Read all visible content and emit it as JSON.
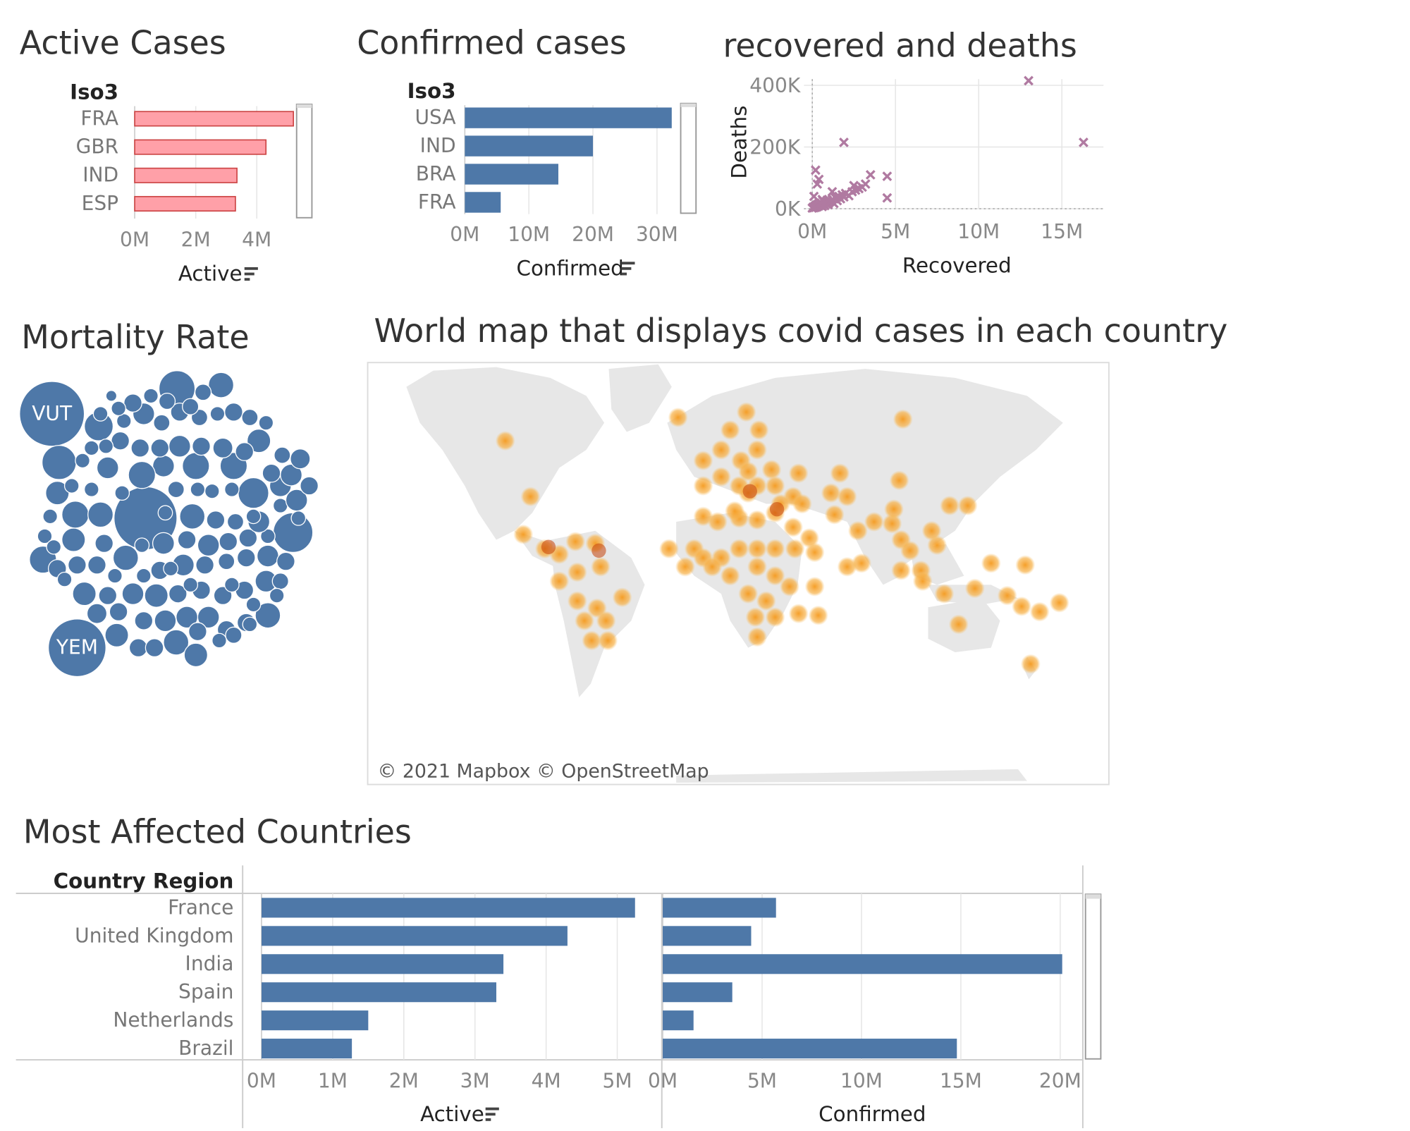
{
  "colors": {
    "pink": "#ffa0a8",
    "pink_stroke": "#c44",
    "blue": "#4e78a8",
    "scatter": "#b07aa1",
    "map_land": "#e7e7e7",
    "heat": "#f5a623"
  },
  "sort_icon": "sort-descending-icon",
  "panels": {
    "active_cases": {
      "title": "Active Cases",
      "chart_data": {
        "type": "bar",
        "orientation": "horizontal",
        "row_header": "Iso3",
        "categories": [
          "FRA",
          "GBR",
          "IND",
          "ESP"
        ],
        "values": [
          5.2,
          4.3,
          3.35,
          3.3
        ],
        "unit": "M",
        "xlabel": "Active",
        "xticks": [
          "0M",
          "2M",
          "4M"
        ],
        "xlim": [
          0,
          5.6
        ]
      }
    },
    "confirmed_cases": {
      "title": "Confirmed cases",
      "chart_data": {
        "type": "bar",
        "orientation": "horizontal",
        "row_header": "Iso3",
        "categories": [
          "USA",
          "IND",
          "BRA",
          "FRA"
        ],
        "values": [
          32.3,
          20.0,
          14.6,
          5.6
        ],
        "unit": "M",
        "xlabel": "Confirmed",
        "xticks": [
          "0M",
          "10M",
          "20M",
          "30M"
        ],
        "xlim": [
          0,
          33
        ]
      }
    },
    "recovered_deaths": {
      "title": "recovered and deaths",
      "chart_data": {
        "type": "scatter",
        "marker": "x",
        "xlabel": "Recovered",
        "ylabel": "Deaths",
        "xticks": [
          "0M",
          "5M",
          "10M",
          "15M"
        ],
        "yticks": [
          "0K",
          "200K",
          "400K"
        ],
        "xlim": [
          -0.5,
          17.5
        ],
        "ylim": [
          0,
          420
        ],
        "points": [
          [
            0.0,
            2
          ],
          [
            0.05,
            5
          ],
          [
            0.1,
            3
          ],
          [
            0.15,
            8
          ],
          [
            0.2,
            4
          ],
          [
            0.25,
            12
          ],
          [
            0.3,
            6
          ],
          [
            0.35,
            15
          ],
          [
            0.4,
            9
          ],
          [
            0.45,
            20
          ],
          [
            0.5,
            11
          ],
          [
            0.55,
            18
          ],
          [
            0.6,
            7
          ],
          [
            0.65,
            25
          ],
          [
            0.7,
            14
          ],
          [
            0.75,
            10
          ],
          [
            0.8,
            22
          ],
          [
            0.85,
            16
          ],
          [
            0.9,
            28
          ],
          [
            0.95,
            13
          ],
          [
            1.0,
            19
          ],
          [
            1.1,
            24
          ],
          [
            1.2,
            30
          ],
          [
            1.3,
            17
          ],
          [
            1.4,
            35
          ],
          [
            1.5,
            26
          ],
          [
            1.6,
            40
          ],
          [
            1.7,
            32
          ],
          [
            1.8,
            45
          ],
          [
            1.9,
            38
          ],
          [
            2.0,
            50
          ],
          [
            2.2,
            42
          ],
          [
            2.4,
            55
          ],
          [
            2.6,
            60
          ],
          [
            2.8,
            65
          ],
          [
            3.0,
            70
          ],
          [
            3.2,
            80
          ],
          [
            3.5,
            110
          ],
          [
            2.5,
            75
          ],
          [
            4.5,
            105
          ],
          [
            4.5,
            35
          ],
          [
            0.2,
            125
          ],
          [
            0.4,
            95
          ],
          [
            0.3,
            80
          ],
          [
            1.9,
            215
          ],
          [
            13.0,
            415
          ],
          [
            16.3,
            215
          ],
          [
            0.1,
            40
          ],
          [
            0.6,
            30
          ],
          [
            1.2,
            55
          ]
        ]
      }
    },
    "mortality_rate": {
      "title": "Mortality Rate",
      "chart_data": {
        "type": "packed-bubble",
        "labeled": [
          {
            "name": "VUT",
            "value": 25
          },
          {
            "name": "YEM",
            "value": 19.5
          }
        ],
        "unlabeled_count": 160
      }
    },
    "world_map": {
      "title": "World map that displays covid cases in each country",
      "credit": "© 2021 Mapbox © OpenStreetMap",
      "chart_data": {
        "type": "heatmap",
        "description_units": "density dots on world map"
      }
    },
    "most_affected": {
      "title": "Most Affected Countries",
      "chart_data": {
        "type": "bar",
        "orientation": "horizontal",
        "row_header": "Country Region",
        "categories": [
          "France",
          "United Kingdom",
          "India",
          "Spain",
          "Netherlands",
          "Brazil"
        ],
        "series": [
          {
            "name": "Active",
            "values": [
              5.25,
              4.3,
              3.4,
              3.3,
              1.5,
              1.27
            ],
            "xticks": [
              "0M",
              "1M",
              "2M",
              "3M",
              "4M",
              "5M"
            ],
            "xlim": [
              0,
              5.5
            ]
          },
          {
            "name": "Confirmed",
            "values": [
              5.7,
              4.45,
              20.1,
              3.5,
              1.55,
              14.8
            ],
            "xticks": [
              "0M",
              "5M",
              "10M",
              "15M",
              "20M"
            ],
            "xlim": [
              0,
              21
            ]
          }
        ]
      }
    }
  }
}
